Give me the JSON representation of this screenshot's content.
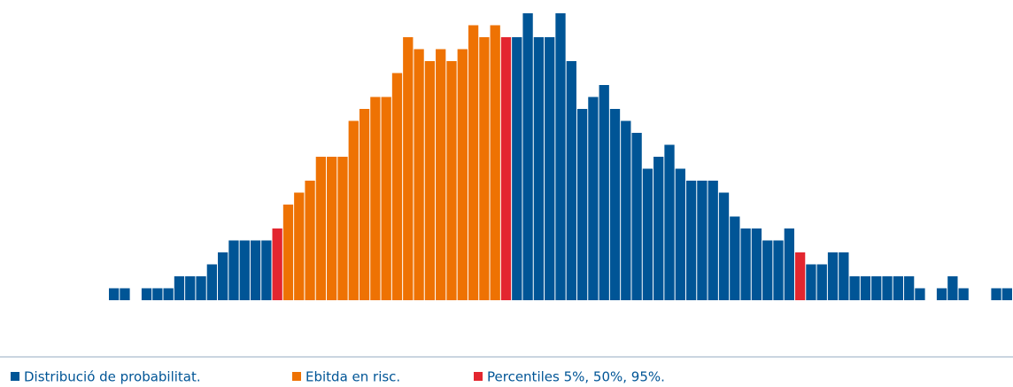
{
  "chart_data": {
    "type": "histogram",
    "bins": [
      0,
      1,
      2,
      3,
      4,
      5,
      6,
      7,
      8,
      9,
      10,
      11,
      12,
      13,
      14,
      15,
      16,
      17,
      18,
      19,
      20,
      21,
      22,
      23,
      24,
      25,
      26,
      27,
      28,
      29,
      30,
      31,
      32,
      33,
      34,
      35,
      36,
      37,
      38,
      39,
      40,
      41,
      42,
      43,
      44,
      45,
      46,
      47,
      48,
      49,
      50,
      51,
      52,
      53,
      54,
      55,
      56,
      57,
      58,
      59,
      60,
      61,
      62,
      63,
      64,
      65,
      66,
      67,
      68,
      69,
      70,
      71,
      72,
      73,
      74,
      75,
      76,
      77,
      78,
      79,
      80,
      81,
      82,
      83
    ],
    "xlim": [
      0,
      83
    ],
    "ylim": [
      0,
      24
    ],
    "series": [
      {
        "name": "Distribució de probabilitat.",
        "color": "#005596",
        "values": [
          1,
          1,
          0,
          1,
          1,
          1,
          2,
          2,
          2,
          3,
          4,
          5,
          5,
          5,
          5,
          null,
          null,
          null,
          null,
          null,
          null,
          null,
          null,
          null,
          null,
          null,
          null,
          null,
          null,
          null,
          null,
          null,
          null,
          null,
          null,
          null,
          null,
          22,
          24,
          22,
          22,
          24,
          20,
          16,
          17,
          18,
          16,
          15,
          14,
          11,
          12,
          13,
          11,
          10,
          10,
          10,
          9,
          7,
          6,
          6,
          5,
          5,
          6,
          null,
          3,
          3,
          4,
          4,
          2,
          2,
          2,
          2,
          2,
          2,
          1,
          0,
          1,
          2,
          1,
          0,
          0,
          1,
          1
        ]
      },
      {
        "name": "Ebitda en risc.",
        "color": "#ee7203",
        "values": [
          null,
          null,
          null,
          null,
          null,
          null,
          null,
          null,
          null,
          null,
          null,
          null,
          null,
          null,
          null,
          null,
          8,
          9,
          10,
          12,
          12,
          12,
          15,
          16,
          17,
          17,
          19,
          22,
          21,
          20,
          21,
          20,
          21,
          23,
          22,
          23,
          null,
          null,
          null,
          null,
          null,
          null,
          null,
          null,
          null,
          null,
          null,
          null,
          null,
          null,
          null,
          null,
          null,
          null,
          null,
          null,
          null,
          null,
          null,
          null,
          null,
          null,
          null,
          null,
          null,
          null,
          null,
          null,
          null,
          null,
          null,
          null,
          null,
          null,
          null,
          null,
          null,
          null,
          null,
          null,
          null,
          null,
          null
        ]
      },
      {
        "name": "Percentiles 5%, 50%, 95%.",
        "color": "#e3262f",
        "values": [
          null,
          null,
          null,
          null,
          null,
          null,
          null,
          null,
          null,
          null,
          null,
          null,
          null,
          null,
          null,
          6,
          null,
          null,
          null,
          null,
          null,
          null,
          null,
          null,
          null,
          null,
          null,
          null,
          null,
          null,
          null,
          null,
          null,
          null,
          null,
          null,
          22,
          null,
          null,
          null,
          null,
          null,
          null,
          null,
          null,
          null,
          null,
          null,
          null,
          null,
          null,
          null,
          null,
          null,
          null,
          null,
          null,
          null,
          null,
          null,
          null,
          null,
          null,
          4,
          null,
          null,
          null,
          null,
          null,
          null,
          null,
          null,
          null,
          null,
          null,
          null,
          null,
          null,
          null,
          null,
          null,
          null,
          null
        ]
      }
    ]
  }
}
